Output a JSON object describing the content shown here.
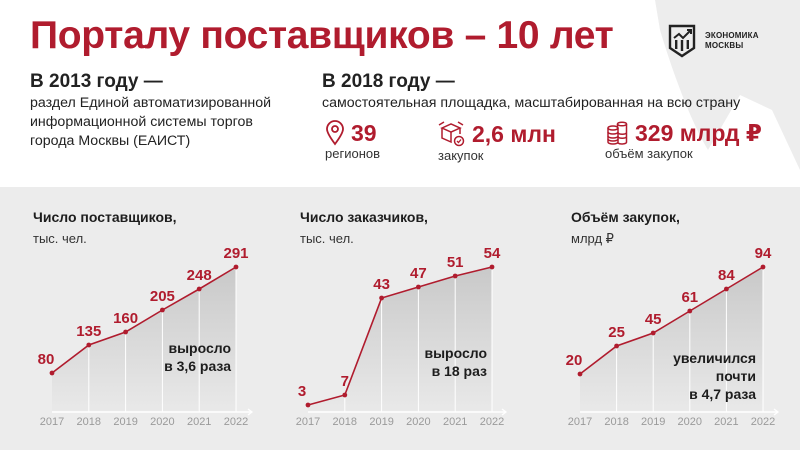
{
  "header": {
    "title": "Порталу поставщиков – 10 лет",
    "logo": {
      "line1": "ЭКОНОМИКА",
      "line2": "МОСКВЫ",
      "icon": "moscow-economy-shield-icon"
    }
  },
  "history": {
    "left": {
      "heading": "В 2013 году —",
      "lines": [
        "раздел Единой автоматизированной",
        "информационной системы торгов",
        "города Москвы (ЕАИСТ)"
      ]
    },
    "right": {
      "heading": "В 2018 году —",
      "text": "самостоятельная площадка, масштабированная на всю страну"
    }
  },
  "stats": [
    {
      "icon": "map-pin-icon",
      "value": "39",
      "label": "регионов"
    },
    {
      "icon": "boxes-icon",
      "value": "2,6 млн",
      "label": "закупок"
    },
    {
      "icon": "coins-icon",
      "value": "329 млрд ₽",
      "label": "объём закупок"
    }
  ],
  "colors": {
    "accent": "#b01c2e",
    "panel": "#ececec",
    "text": "#1d1d1d",
    "axis_label": "#9a9a9a"
  },
  "charts": [
    {
      "title": "Число поставщиков,",
      "unit": "тыс. чел.",
      "note": [
        "выросло",
        "в 3,6 раза"
      ]
    },
    {
      "title": "Число заказчиков,",
      "unit": "тыс. чел.",
      "note": [
        "выросло",
        "в 18 раз"
      ]
    },
    {
      "title": "Объём закупок,",
      "unit": "млрд ₽",
      "note": [
        "увеличился",
        "почти",
        "в 4,7 раза"
      ]
    }
  ],
  "chart_data": [
    {
      "type": "area",
      "title": "Число поставщиков, тыс. чел.",
      "xlabel": "",
      "ylabel": "тыс. чел.",
      "categories": [
        "2017",
        "2018",
        "2019",
        "2020",
        "2021",
        "2022"
      ],
      "values": [
        80,
        135,
        160,
        205,
        248,
        291
      ],
      "annotation": "выросло в 3,6 раза",
      "grid": false
    },
    {
      "type": "area",
      "title": "Число заказчиков, тыс. чел.",
      "xlabel": "",
      "ylabel": "тыс. чел.",
      "categories": [
        "2017",
        "2018",
        "2019",
        "2020",
        "2021",
        "2022"
      ],
      "values": [
        3,
        7,
        43,
        47,
        51,
        54
      ],
      "annotation": "выросло в 18 раз",
      "grid": false
    },
    {
      "type": "area",
      "title": "Объём закупок, млрд ₽",
      "xlabel": "",
      "ylabel": "млрд ₽",
      "categories": [
        "2017",
        "2018",
        "2019",
        "2020",
        "2021",
        "2022"
      ],
      "values": [
        20,
        25,
        45,
        61,
        84,
        94
      ],
      "annotation": "увеличился почти в 4,7 раза",
      "grid": false
    }
  ]
}
